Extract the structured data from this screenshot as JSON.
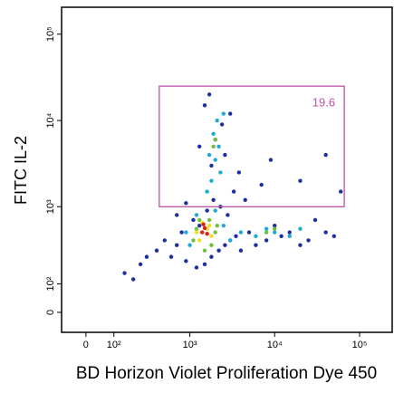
{
  "chart_data": {
    "type": "density-dot-plot",
    "x_label": "BD Horizon Violet Proliferation Dye 450",
    "y_label": "FITC IL-2",
    "xlim": [
      -85,
      242000
    ],
    "ylim": [
      -67,
      205000
    ],
    "xticks": [
      0,
      {
        "value": 100,
        "label": "10²"
      },
      {
        "value": 1000,
        "label": "10³"
      },
      {
        "value": 10000,
        "label": "10⁴"
      },
      {
        "value": 100000,
        "label": "10⁵"
      }
    ],
    "yticks": [
      0,
      {
        "value": 100,
        "label": "10²"
      },
      {
        "value": 1000,
        "label": "10³"
      },
      {
        "value": 10000,
        "label": "10⁴"
      },
      {
        "value": 100000,
        "label": "10⁵"
      }
    ],
    "gate": {
      "x": [
        430,
        66000
      ],
      "y": [
        1000,
        25000
      ],
      "label": 19.6,
      "color": "#c050a8"
    },
    "series": [
      {
        "color": "#1a2fa0",
        "x": [
          150,
          200,
          250,
          300,
          400,
          500,
          600,
          700,
          800,
          900,
          1200,
          1500,
          1800,
          2200,
          2600,
          3000,
          3500,
          4000,
          5000,
          6000,
          8000,
          10000,
          12000,
          15000,
          20000,
          25000,
          30000,
          40000,
          50000,
          700,
          900,
          1100,
          1300,
          1600,
          1900,
          2300,
          2800,
          3300,
          4500,
          7000,
          1800,
          2000,
          2400,
          3000,
          1500,
          1700,
          1300,
          2600,
          3800,
          9000,
          20000,
          40000,
          60000
        ],
        "y": [
          150,
          120,
          200,
          250,
          300,
          400,
          250,
          350,
          500,
          220,
          180,
          200,
          250,
          300,
          350,
          400,
          450,
          300,
          500,
          350,
          400,
          600,
          450,
          500,
          350,
          400,
          700,
          500,
          450,
          800,
          1100,
          700,
          600,
          900,
          1200,
          1000,
          800,
          1500,
          1200,
          1800,
          3000,
          6000,
          9000,
          12000,
          15000,
          20000,
          5000,
          4000,
          2500,
          3500,
          2000,
          4000,
          1500
        ]
      },
      {
        "color": "#20a8d8",
        "x": [
          900,
          1000,
          1200,
          2000,
          2500,
          3000,
          4000,
          6000,
          8000,
          10000,
          15000,
          20000,
          1800,
          2000,
          2200,
          1900,
          2100,
          1700,
          2300,
          1600,
          2500
        ],
        "y": [
          500,
          350,
          800,
          900,
          600,
          400,
          500,
          450,
          550,
          500,
          450,
          550,
          2000,
          3500,
          5000,
          7000,
          10000,
          4000,
          2500,
          1500,
          12000
        ]
      },
      {
        "color": "#70c040",
        "x": [
          1100,
          1300,
          1700,
          2000,
          1200,
          1500,
          1800,
          2100,
          8000,
          10000,
          1900,
          2000
        ],
        "y": [
          400,
          700,
          700,
          500,
          550,
          300,
          350,
          600,
          500,
          550,
          5000,
          6000
        ]
      },
      {
        "color": "#f0e020",
        "x": [
          1200,
          1400,
          1600,
          1800,
          1300,
          1700
        ],
        "y": [
          500,
          650,
          550,
          450,
          400,
          600
        ]
      },
      {
        "color": "#e02010",
        "x": [
          1400,
          1500,
          1600,
          1450
        ],
        "y": [
          500,
          560,
          480,
          620
        ]
      }
    ]
  }
}
